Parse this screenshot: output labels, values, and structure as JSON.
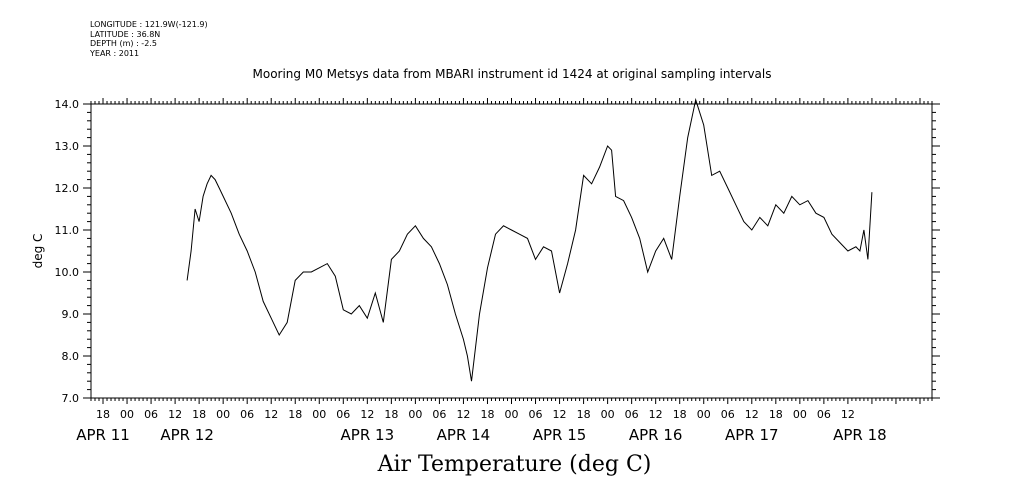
{
  "meta": {
    "longitude": "LONGITUDE : 121.9W(-121.9)",
    "latitude": "LATITUDE : 36.8N",
    "depth": "DEPTH (m) : -2.5",
    "year": "YEAR : 2011"
  },
  "chart_data": {
    "type": "line",
    "title": "Mooring M0 Metsys data from MBARI instrument id 1424 at original sampling intervals",
    "xlabel": "Air Temperature (deg C)",
    "ylabel": "deg C",
    "ylim": [
      7.0,
      14.0
    ],
    "y_ticks": [
      "7.0",
      "8.0",
      "9.0",
      "10.0",
      "11.0",
      "12.0",
      "13.0",
      "14.0"
    ],
    "xlim_hours": [
      -9,
      201
    ],
    "hour_ticks": [
      "18",
      "00",
      "06",
      "12",
      "18",
      "00",
      "06",
      "12",
      "18",
      "00",
      "06",
      "12",
      "18",
      "00",
      "06",
      "12",
      "18",
      "00",
      "06",
      "12",
      "18",
      "00",
      "06",
      "12",
      "18",
      "00",
      "06",
      "12",
      "18",
      "00",
      "06",
      "12"
    ],
    "date_labels": [
      "APR 11",
      "APR 12",
      "APR 13",
      "APR 14",
      "APR 15",
      "APR 16",
      "APR 17",
      "APR 18"
    ],
    "grid": false,
    "series": [
      {
        "x": [
          "2011-04-11 15:00",
          "2011-04-11 16:00",
          "2011-04-11 17:00",
          "2011-04-11 18:00",
          "2011-04-11 19:00",
          "2011-04-11 20:00",
          "2011-04-11 21:00",
          "2011-04-11 22:00",
          "2011-04-11 23:00",
          "2011-04-12 00:00",
          "2011-04-12 02:00",
          "2011-04-12 04:00",
          "2011-04-12 06:00",
          "2011-04-12 08:00",
          "2011-04-12 10:00",
          "2011-04-12 12:00",
          "2011-04-12 14:00",
          "2011-04-12 16:00",
          "2011-04-12 18:00",
          "2011-04-12 20:00",
          "2011-04-12 22:00",
          "2011-04-13 00:00",
          "2011-04-13 02:00",
          "2011-04-13 04:00",
          "2011-04-13 06:00",
          "2011-04-13 08:00",
          "2011-04-13 10:00",
          "2011-04-13 12:00",
          "2011-04-13 14:00",
          "2011-04-13 16:00",
          "2011-04-13 18:00",
          "2011-04-13 20:00",
          "2011-04-13 22:00",
          "2011-04-14 00:00",
          "2011-04-14 02:00",
          "2011-04-14 04:00",
          "2011-04-14 06:00",
          "2011-04-14 08:00",
          "2011-04-14 10:00",
          "2011-04-14 12:00",
          "2011-04-14 13:00",
          "2011-04-14 14:00",
          "2011-04-14 16:00",
          "2011-04-14 18:00",
          "2011-04-14 20:00",
          "2011-04-14 22:00",
          "2011-04-15 00:00",
          "2011-04-15 02:00",
          "2011-04-15 04:00",
          "2011-04-15 06:00",
          "2011-04-15 08:00",
          "2011-04-15 10:00",
          "2011-04-15 12:00",
          "2011-04-15 14:00",
          "2011-04-15 16:00",
          "2011-04-15 18:00",
          "2011-04-15 20:00",
          "2011-04-15 22:00",
          "2011-04-16 00:00",
          "2011-04-16 01:00",
          "2011-04-16 02:00",
          "2011-04-16 04:00",
          "2011-04-16 06:00",
          "2011-04-16 08:00",
          "2011-04-16 10:00",
          "2011-04-16 12:00",
          "2011-04-16 14:00",
          "2011-04-16 16:00",
          "2011-04-16 18:00",
          "2011-04-16 20:00",
          "2011-04-16 22:00",
          "2011-04-17 00:00",
          "2011-04-17 02:00",
          "2011-04-17 04:00",
          "2011-04-17 06:00",
          "2011-04-17 08:00",
          "2011-04-17 10:00",
          "2011-04-17 12:00",
          "2011-04-17 14:00",
          "2011-04-17 16:00",
          "2011-04-17 18:00",
          "2011-04-17 20:00",
          "2011-04-17 22:00",
          "2011-04-18 00:00",
          "2011-04-18 02:00",
          "2011-04-18 04:00",
          "2011-04-18 06:00",
          "2011-04-18 08:00",
          "2011-04-18 10:00",
          "2011-04-18 12:00",
          "2011-04-18 14:00",
          "2011-04-18 15:00",
          "2011-04-18 16:00",
          "2011-04-18 17:00",
          "2011-04-18 18:00"
        ],
        "y": [
          9.8,
          10.5,
          11.5,
          11.2,
          11.8,
          12.1,
          12.3,
          12.2,
          12.0,
          11.8,
          11.4,
          10.9,
          10.5,
          10.0,
          9.3,
          8.9,
          8.5,
          8.8,
          9.8,
          10.0,
          10.0,
          10.1,
          10.2,
          9.9,
          9.1,
          9.0,
          9.2,
          8.9,
          9.5,
          8.8,
          10.3,
          10.5,
          10.9,
          11.1,
          10.8,
          10.6,
          10.2,
          9.7,
          9.0,
          8.4,
          8.0,
          7.4,
          9.0,
          10.1,
          10.9,
          11.1,
          11.0,
          10.9,
          10.8,
          10.3,
          10.6,
          10.5,
          9.5,
          10.2,
          11.0,
          12.3,
          12.1,
          12.5,
          13.0,
          12.9,
          11.8,
          11.7,
          11.3,
          10.8,
          10.0,
          10.5,
          10.8,
          10.3,
          11.8,
          13.2,
          14.1,
          13.5,
          12.3,
          12.4,
          12.0,
          11.6,
          11.2,
          11.0,
          11.3,
          11.1,
          11.6,
          11.4,
          11.8,
          11.6,
          11.7,
          11.4,
          11.3,
          10.9,
          10.7,
          10.5,
          10.6,
          10.5,
          11.0,
          10.3,
          11.9
        ]
      }
    ]
  }
}
